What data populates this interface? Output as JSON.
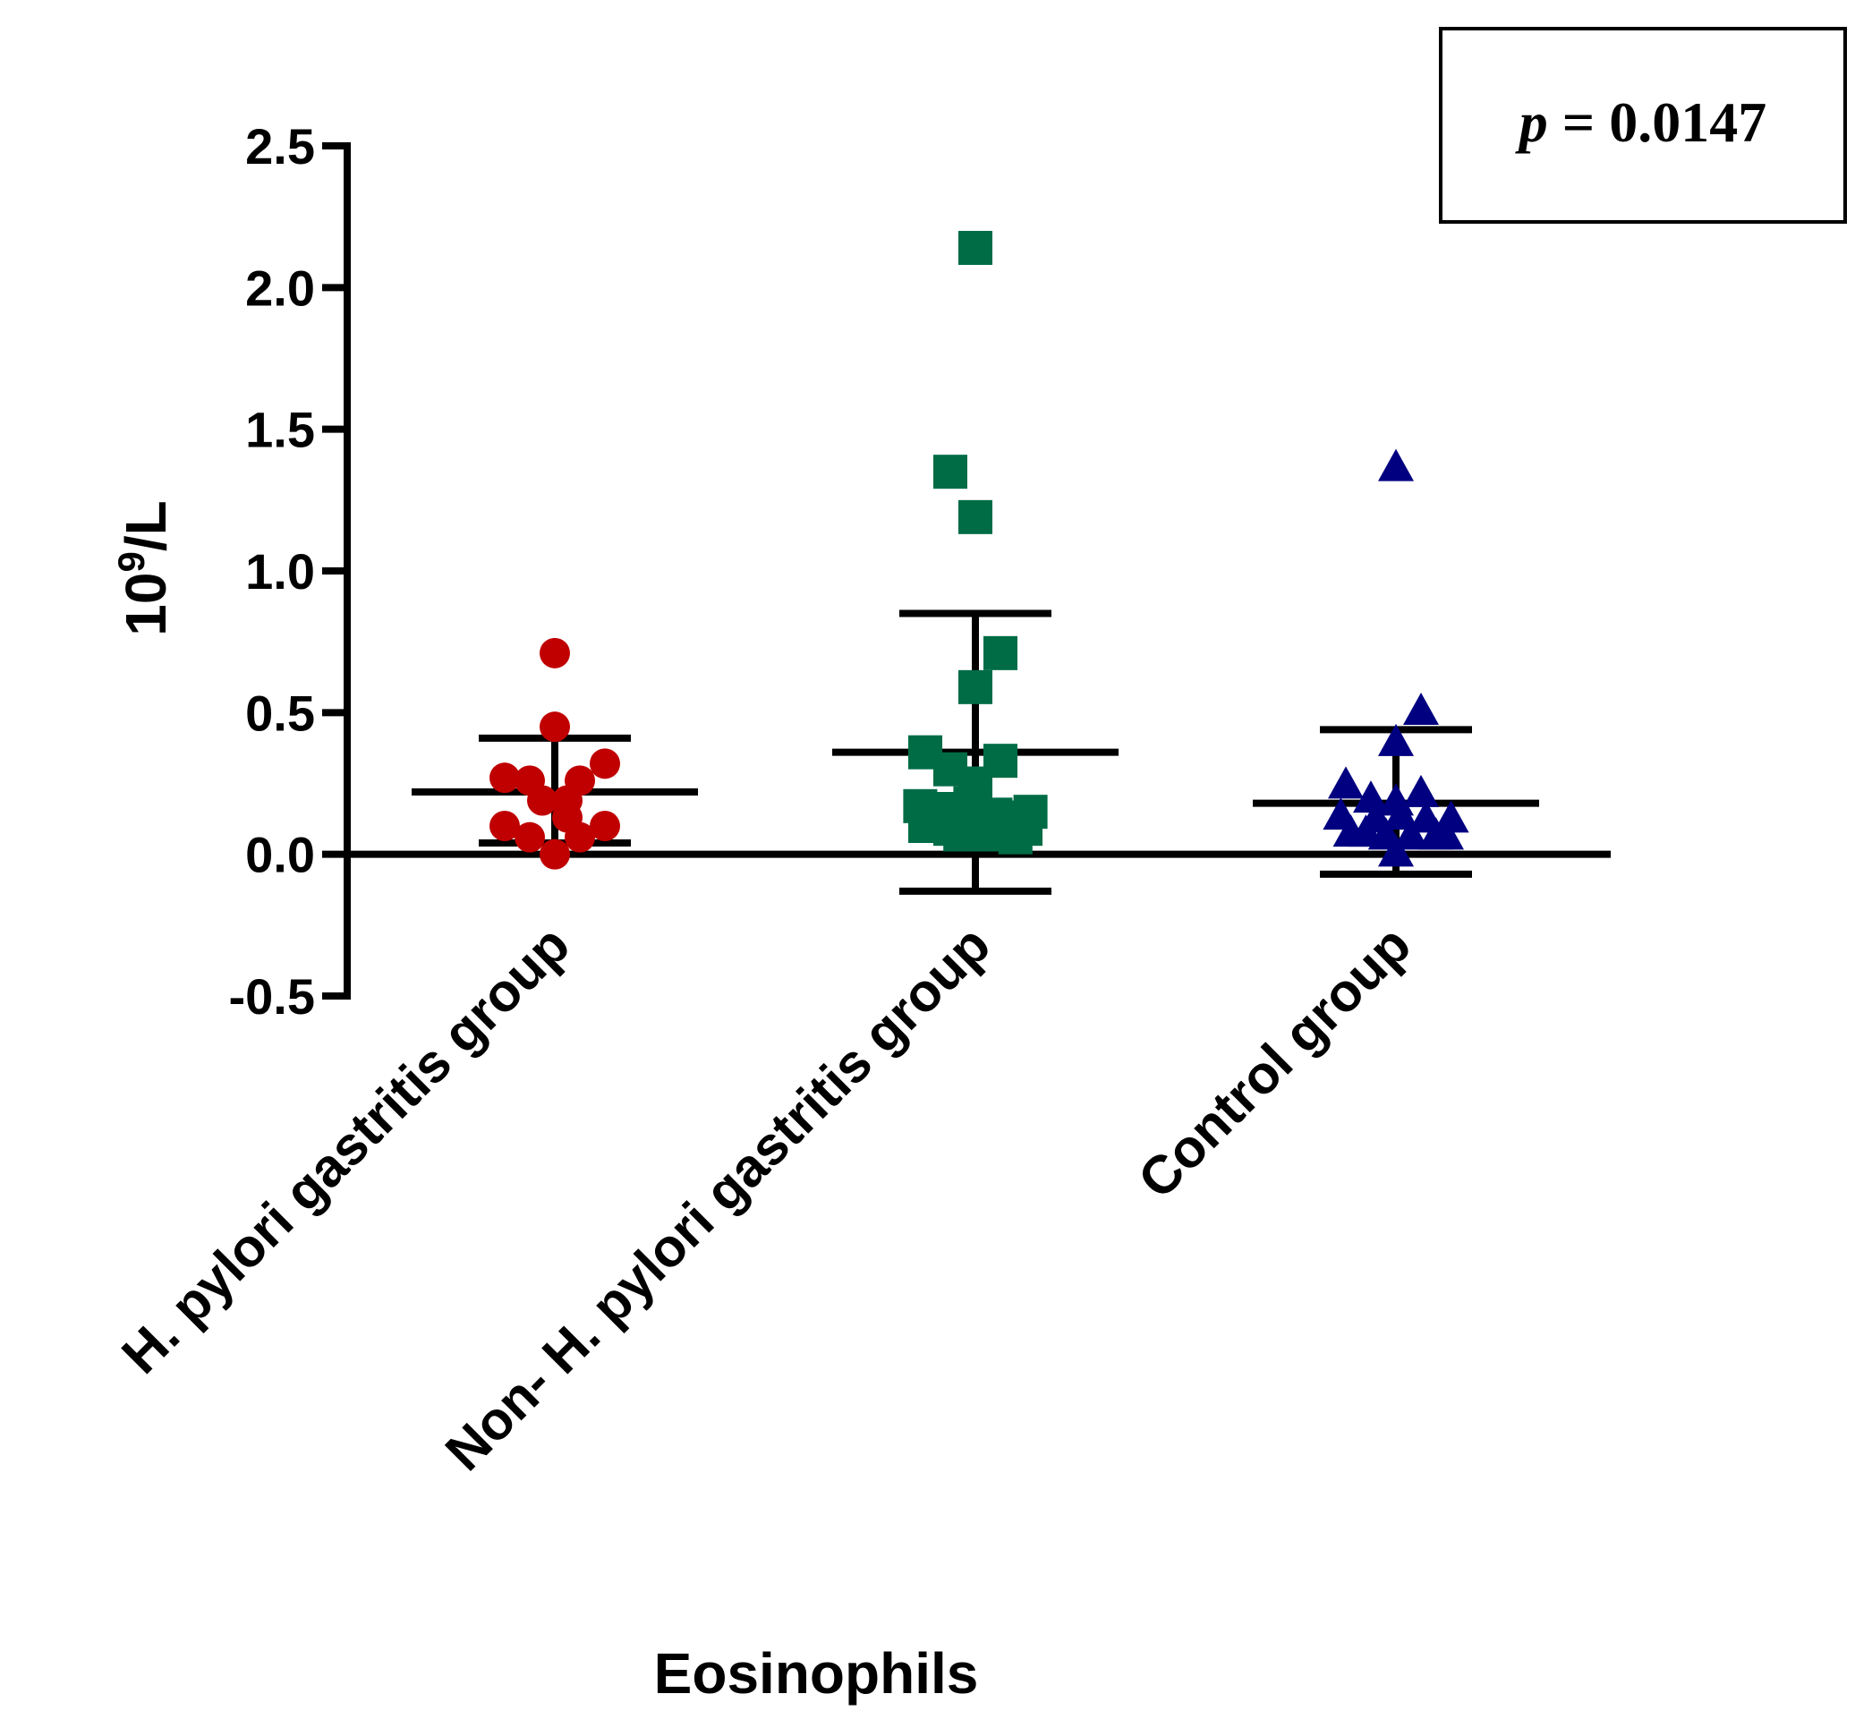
{
  "chart_data": {
    "type": "scatter",
    "xlabel": "Eosinophils",
    "ylabel_base": "10",
    "ylabel_exp": "9",
    "ylabel_unit": "/L",
    "ylim": [
      -0.5,
      2.5
    ],
    "yticks": [
      -0.5,
      0.0,
      0.5,
      1.0,
      1.5,
      2.0,
      2.5
    ],
    "ytick_labels": [
      "-0.5",
      "0.0",
      "0.5",
      "1.0",
      "1.5",
      "2.0",
      "2.5"
    ],
    "grid": false,
    "annotation": {
      "p_symbol": "p",
      "p_text": " = 0.0147"
    },
    "groups": [
      {
        "name": "H. pylori gastritis group",
        "color": "#c00000",
        "marker": "circle",
        "mean": 0.22,
        "sd_low": 0.04,
        "sd_high": 0.41,
        "points": [
          {
            "dx": 0,
            "y": 0.71
          },
          {
            "dx": 0,
            "y": 0.45
          },
          {
            "dx": -2,
            "y": 0.27
          },
          {
            "dx": -1,
            "y": 0.26
          },
          {
            "dx": 1,
            "y": 0.26
          },
          {
            "dx": 2,
            "y": 0.32
          },
          {
            "dx": -0.5,
            "y": 0.19
          },
          {
            "dx": 0.5,
            "y": 0.19
          },
          {
            "dx": 0.5,
            "y": 0.13
          },
          {
            "dx": -2,
            "y": 0.1
          },
          {
            "dx": 2,
            "y": 0.1
          },
          {
            "dx": -1,
            "y": 0.06
          },
          {
            "dx": 1,
            "y": 0.06
          },
          {
            "dx": 0,
            "y": 0.0
          }
        ]
      },
      {
        "name": "Non- H. pylori gastritis group",
        "color": "#006c46",
        "marker": "square",
        "mean": 0.36,
        "sd_low": -0.13,
        "sd_high": 0.85,
        "points": [
          {
            "dx": 0,
            "y": 2.14
          },
          {
            "dx": -1,
            "y": 1.35
          },
          {
            "dx": 0,
            "y": 1.19
          },
          {
            "dx": 1,
            "y": 0.71
          },
          {
            "dx": 0,
            "y": 0.59
          },
          {
            "dx": -2,
            "y": 0.36
          },
          {
            "dx": 1,
            "y": 0.33
          },
          {
            "dx": -1,
            "y": 0.3
          },
          {
            "dx": 0,
            "y": 0.25
          },
          {
            "dx": -2.2,
            "y": 0.17
          },
          {
            "dx": -1.2,
            "y": 0.16
          },
          {
            "dx": -0.2,
            "y": 0.18
          },
          {
            "dx": 0.8,
            "y": 0.14
          },
          {
            "dx": 1.8,
            "y": 0.13
          },
          {
            "dx": 2.2,
            "y": 0.15
          },
          {
            "dx": -2,
            "y": 0.1
          },
          {
            "dx": -1,
            "y": 0.09
          },
          {
            "dx": 0,
            "y": 0.09
          },
          {
            "dx": 1,
            "y": 0.09
          },
          {
            "dx": 2,
            "y": 0.09
          },
          {
            "dx": -0.6,
            "y": 0.07
          },
          {
            "dx": 0.4,
            "y": 0.07
          },
          {
            "dx": 1.6,
            "y": 0.06
          }
        ]
      },
      {
        "name": "Control group",
        "color": "#000080",
        "marker": "triangle",
        "mean": 0.18,
        "sd_low": -0.07,
        "sd_high": 0.44,
        "points": [
          {
            "dx": 0,
            "y": 1.36
          },
          {
            "dx": 1,
            "y": 0.5
          },
          {
            "dx": 0,
            "y": 0.39
          },
          {
            "dx": -2,
            "y": 0.24
          },
          {
            "dx": -1,
            "y": 0.19
          },
          {
            "dx": 1,
            "y": 0.21
          },
          {
            "dx": 0,
            "y": 0.18
          },
          {
            "dx": -2.2,
            "y": 0.13
          },
          {
            "dx": -0.8,
            "y": 0.12
          },
          {
            "dx": 0.2,
            "y": 0.13
          },
          {
            "dx": 1.2,
            "y": 0.12
          },
          {
            "dx": 2.2,
            "y": 0.12
          },
          {
            "dx": -1.8,
            "y": 0.07
          },
          {
            "dx": -1.2,
            "y": 0.07
          },
          {
            "dx": -0.4,
            "y": 0.06
          },
          {
            "dx": 0.6,
            "y": 0.06
          },
          {
            "dx": 1.6,
            "y": 0.06
          },
          {
            "dx": 2,
            "y": 0.06
          },
          {
            "dx": 0,
            "y": 0.0
          }
        ]
      }
    ]
  }
}
